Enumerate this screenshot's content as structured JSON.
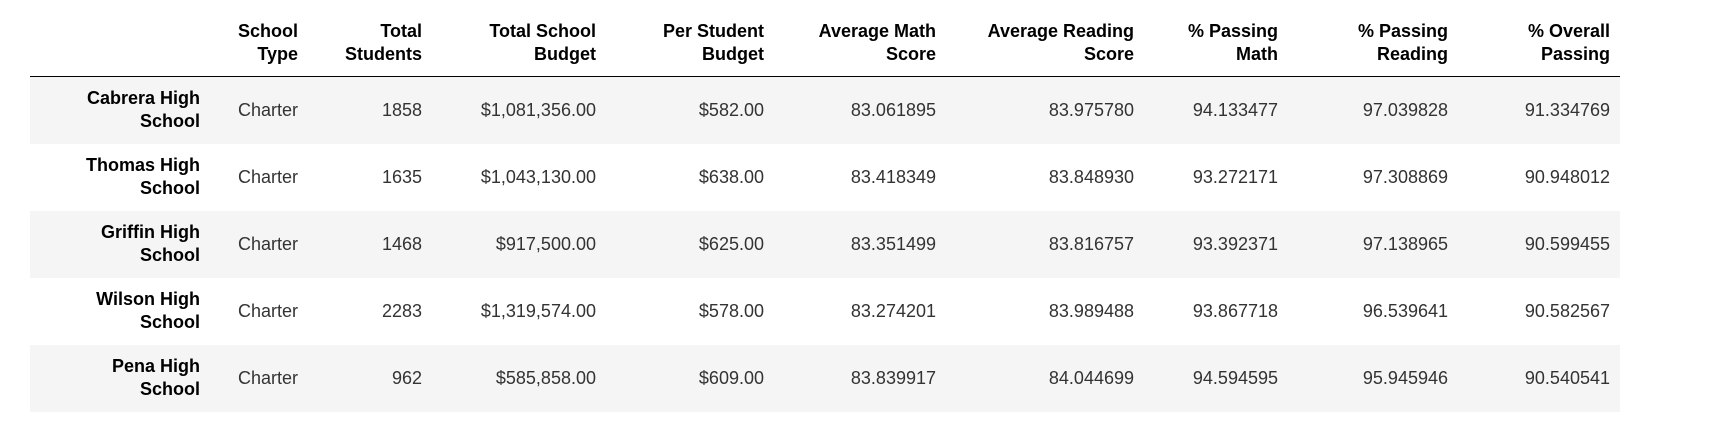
{
  "table": {
    "columns": [
      "",
      "School\nType",
      "Total\nStudents",
      "Total School\nBudget",
      "Per Student\nBudget",
      "Average Math\nScore",
      "Average Reading\nScore",
      "% Passing\nMath",
      "% Passing\nReading",
      "% Overall\nPassing"
    ],
    "rows": [
      {
        "name": "Cabrera High\nSchool",
        "cells": [
          "Charter",
          "1858",
          "$1,081,356.00",
          "$582.00",
          "83.061895",
          "83.975780",
          "94.133477",
          "97.039828",
          "91.334769"
        ]
      },
      {
        "name": "Thomas High\nSchool",
        "cells": [
          "Charter",
          "1635",
          "$1,043,130.00",
          "$638.00",
          "83.418349",
          "83.848930",
          "93.272171",
          "97.308869",
          "90.948012"
        ]
      },
      {
        "name": "Griffin High\nSchool",
        "cells": [
          "Charter",
          "1468",
          "$917,500.00",
          "$625.00",
          "83.351499",
          "83.816757",
          "93.392371",
          "97.138965",
          "90.599455"
        ]
      },
      {
        "name": "Wilson High\nSchool",
        "cells": [
          "Charter",
          "2283",
          "$1,319,574.00",
          "$578.00",
          "83.274201",
          "83.989488",
          "93.867718",
          "96.539641",
          "90.582567"
        ]
      },
      {
        "name": "Pena High\nSchool",
        "cells": [
          "Charter",
          "962",
          "$585,858.00",
          "$609.00",
          "83.839917",
          "84.044699",
          "94.594595",
          "95.945946",
          "90.540541"
        ]
      }
    ]
  }
}
